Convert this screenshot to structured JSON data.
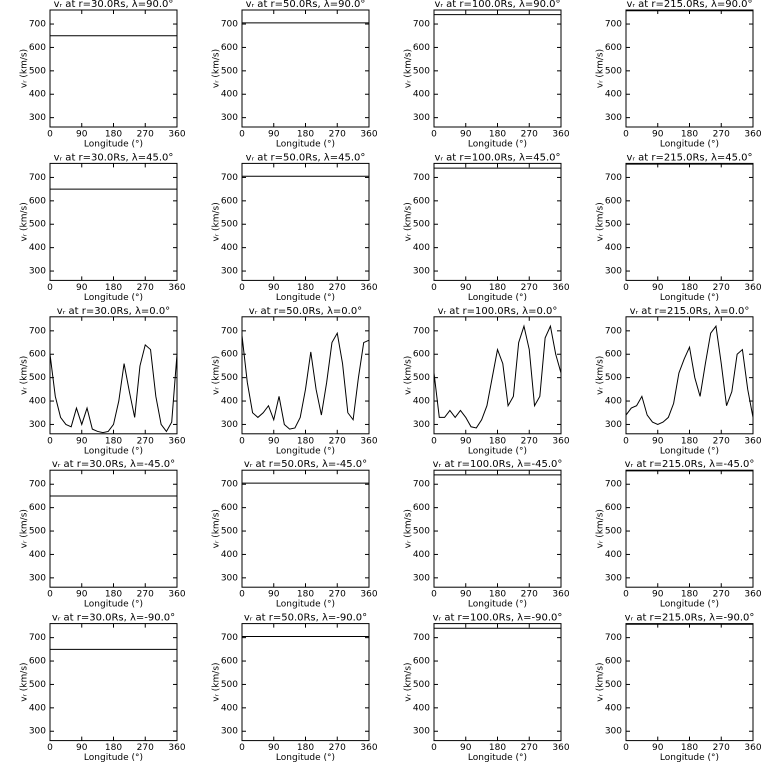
{
  "chart_data": [
    {
      "type": "line",
      "title": "vᵣ at r=30.0Rs, λ=90.0°",
      "x_label": "Longitude (°)",
      "y_label": "vᵣ (km/s)",
      "x": [
        0,
        360
      ],
      "values": [
        650,
        650
      ],
      "color": "#000000",
      "xlim": [
        0,
        360
      ],
      "ylim": [
        260,
        760
      ],
      "xticks": [
        0,
        90,
        180,
        270,
        360
      ],
      "yticks": [
        300,
        400,
        500,
        600,
        700
      ]
    },
    {
      "type": "line",
      "title": "vᵣ at r=50.0Rs, λ=90.0°",
      "x_label": "Longitude (°)",
      "y_label": "vᵣ (km/s)",
      "x": [
        0,
        360
      ],
      "values": [
        705,
        705
      ],
      "color": "#000000",
      "xlim": [
        0,
        360
      ],
      "ylim": [
        260,
        760
      ],
      "xticks": [
        0,
        90,
        180,
        270,
        360
      ],
      "yticks": [
        300,
        400,
        500,
        600,
        700
      ]
    },
    {
      "type": "line",
      "title": "vᵣ at r=100.0Rs, λ=90.0°",
      "x_label": "Longitude (°)",
      "y_label": "vᵣ (km/s)",
      "x": [
        0,
        360
      ],
      "values": [
        740,
        740
      ],
      "color": "#000000",
      "xlim": [
        0,
        360
      ],
      "ylim": [
        260,
        760
      ],
      "xticks": [
        0,
        90,
        180,
        270,
        360
      ],
      "yticks": [
        300,
        400,
        500,
        600,
        700
      ]
    },
    {
      "type": "line",
      "title": "vᵣ at r=215.0Rs, λ=90.0°",
      "x_label": "Longitude (°)",
      "y_label": "vᵣ (km/s)",
      "x": [
        0,
        360
      ],
      "values": [
        757,
        757
      ],
      "color": "#000000",
      "xlim": [
        0,
        360
      ],
      "ylim": [
        260,
        760
      ],
      "xticks": [
        0,
        90,
        180,
        270,
        360
      ],
      "yticks": [
        300,
        400,
        500,
        600,
        700
      ]
    },
    {
      "type": "line",
      "title": "vᵣ at r=30.0Rs, λ=45.0°",
      "x_label": "Longitude (°)",
      "y_label": "vᵣ (km/s)",
      "x": [
        0,
        360
      ],
      "values": [
        650,
        650
      ],
      "color": "#000000",
      "xlim": [
        0,
        360
      ],
      "ylim": [
        260,
        760
      ],
      "xticks": [
        0,
        90,
        180,
        270,
        360
      ],
      "yticks": [
        300,
        400,
        500,
        600,
        700
      ]
    },
    {
      "type": "line",
      "title": "vᵣ at r=50.0Rs, λ=45.0°",
      "x_label": "Longitude (°)",
      "y_label": "vᵣ (km/s)",
      "x": [
        0,
        360
      ],
      "values": [
        705,
        705
      ],
      "color": "#000000",
      "xlim": [
        0,
        360
      ],
      "ylim": [
        260,
        760
      ],
      "xticks": [
        0,
        90,
        180,
        270,
        360
      ],
      "yticks": [
        300,
        400,
        500,
        600,
        700
      ]
    },
    {
      "type": "line",
      "title": "vᵣ at r=100.0Rs, λ=45.0°",
      "x_label": "Longitude (°)",
      "y_label": "vᵣ (km/s)",
      "x": [
        0,
        360
      ],
      "values": [
        740,
        740
      ],
      "color": "#000000",
      "xlim": [
        0,
        360
      ],
      "ylim": [
        260,
        760
      ],
      "xticks": [
        0,
        90,
        180,
        270,
        360
      ],
      "yticks": [
        300,
        400,
        500,
        600,
        700
      ]
    },
    {
      "type": "line",
      "title": "vᵣ at r=215.0Rs, λ=45.0°",
      "x_label": "Longitude (°)",
      "y_label": "vᵣ (km/s)",
      "x": [
        0,
        360
      ],
      "values": [
        757,
        757
      ],
      "color": "#000000",
      "xlim": [
        0,
        360
      ],
      "ylim": [
        260,
        760
      ],
      "xticks": [
        0,
        90,
        180,
        270,
        360
      ],
      "yticks": [
        300,
        400,
        500,
        600,
        700
      ]
    },
    {
      "type": "line",
      "title": "vᵣ at r=30.0Rs, λ=0.0°",
      "x_label": "Longitude (°)",
      "y_label": "vᵣ (km/s)",
      "x": [
        0,
        15,
        30,
        45,
        60,
        75,
        90,
        105,
        120,
        135,
        150,
        165,
        180,
        195,
        210,
        225,
        240,
        255,
        270,
        285,
        300,
        315,
        330,
        345,
        360
      ],
      "values": [
        600,
        420,
        330,
        300,
        290,
        370,
        300,
        370,
        280,
        270,
        265,
        270,
        300,
        400,
        560,
        440,
        330,
        550,
        640,
        620,
        420,
        300,
        270,
        310,
        600
      ],
      "color": "#000000",
      "xlim": [
        0,
        360
      ],
      "ylim": [
        260,
        760
      ],
      "xticks": [
        0,
        90,
        180,
        270,
        360
      ],
      "yticks": [
        300,
        400,
        500,
        600,
        700
      ]
    },
    {
      "type": "line",
      "title": "vᵣ at r=50.0Rs, λ=0.0°",
      "x_label": "Longitude (°)",
      "y_label": "vᵣ (km/s)",
      "x": [
        0,
        15,
        30,
        45,
        60,
        75,
        90,
        105,
        120,
        135,
        150,
        165,
        180,
        195,
        210,
        225,
        240,
        255,
        270,
        285,
        300,
        315,
        330,
        345,
        360
      ],
      "values": [
        680,
        480,
        350,
        330,
        350,
        380,
        320,
        420,
        300,
        280,
        285,
        330,
        450,
        610,
        450,
        340,
        480,
        650,
        690,
        560,
        350,
        320,
        500,
        650,
        660
      ],
      "color": "#000000",
      "xlim": [
        0,
        360
      ],
      "ylim": [
        260,
        760
      ],
      "xticks": [
        0,
        90,
        180,
        270,
        360
      ],
      "yticks": [
        300,
        400,
        500,
        600,
        700
      ]
    },
    {
      "type": "line",
      "title": "vᵣ at r=100.0Rs, λ=0.0°",
      "x_label": "Longitude (°)",
      "y_label": "vᵣ (km/s)",
      "x": [
        0,
        15,
        30,
        45,
        60,
        75,
        90,
        105,
        120,
        135,
        150,
        165,
        180,
        195,
        210,
        225,
        240,
        255,
        270,
        285,
        300,
        315,
        330,
        345,
        360
      ],
      "values": [
        520,
        330,
        330,
        360,
        330,
        360,
        330,
        290,
        285,
        320,
        380,
        500,
        620,
        560,
        380,
        420,
        650,
        720,
        620,
        380,
        420,
        670,
        720,
        600,
        520
      ],
      "color": "#000000",
      "xlim": [
        0,
        360
      ],
      "ylim": [
        260,
        760
      ],
      "xticks": [
        0,
        90,
        180,
        270,
        360
      ],
      "yticks": [
        300,
        400,
        500,
        600,
        700
      ]
    },
    {
      "type": "line",
      "title": "vᵣ at r=215.0Rs, λ=0.0°",
      "x_label": "Longitude (°)",
      "y_label": "vᵣ (km/s)",
      "x": [
        0,
        15,
        30,
        45,
        60,
        75,
        90,
        105,
        120,
        135,
        150,
        165,
        180,
        195,
        210,
        225,
        240,
        255,
        270,
        285,
        300,
        315,
        330,
        345,
        360
      ],
      "values": [
        340,
        370,
        380,
        420,
        340,
        310,
        300,
        310,
        330,
        390,
        520,
        580,
        630,
        500,
        420,
        560,
        690,
        720,
        560,
        380,
        440,
        600,
        620,
        450,
        330
      ],
      "color": "#000000",
      "xlim": [
        0,
        360
      ],
      "ylim": [
        260,
        760
      ],
      "xticks": [
        0,
        90,
        180,
        270,
        360
      ],
      "yticks": [
        300,
        400,
        500,
        600,
        700
      ]
    },
    {
      "type": "line",
      "title": "vᵣ at r=30.0Rs, λ=-45.0°",
      "x_label": "Longitude (°)",
      "y_label": "vᵣ (km/s)",
      "x": [
        0,
        360
      ],
      "values": [
        650,
        650
      ],
      "color": "#000000",
      "xlim": [
        0,
        360
      ],
      "ylim": [
        260,
        760
      ],
      "xticks": [
        0,
        90,
        180,
        270,
        360
      ],
      "yticks": [
        300,
        400,
        500,
        600,
        700
      ]
    },
    {
      "type": "line",
      "title": "vᵣ at r=50.0Rs, λ=-45.0°",
      "x_label": "Longitude (°)",
      "y_label": "vᵣ (km/s)",
      "x": [
        0,
        360
      ],
      "values": [
        705,
        705
      ],
      "color": "#000000",
      "xlim": [
        0,
        360
      ],
      "ylim": [
        260,
        760
      ],
      "xticks": [
        0,
        90,
        180,
        270,
        360
      ],
      "yticks": [
        300,
        400,
        500,
        600,
        700
      ]
    },
    {
      "type": "line",
      "title": "vᵣ at r=100.0Rs, λ=-45.0°",
      "x_label": "Longitude (°)",
      "y_label": "vᵣ (km/s)",
      "x": [
        0,
        360
      ],
      "values": [
        740,
        740
      ],
      "color": "#000000",
      "xlim": [
        0,
        360
      ],
      "ylim": [
        260,
        760
      ],
      "xticks": [
        0,
        90,
        180,
        270,
        360
      ],
      "yticks": [
        300,
        400,
        500,
        600,
        700
      ]
    },
    {
      "type": "line",
      "title": "vᵣ at r=215.0Rs, λ=-45.0°",
      "x_label": "Longitude (°)",
      "y_label": "vᵣ (km/s)",
      "x": [
        0,
        360
      ],
      "values": [
        757,
        757
      ],
      "color": "#000000",
      "xlim": [
        0,
        360
      ],
      "ylim": [
        260,
        760
      ],
      "xticks": [
        0,
        90,
        180,
        270,
        360
      ],
      "yticks": [
        300,
        400,
        500,
        600,
        700
      ]
    },
    {
      "type": "line",
      "title": "vᵣ at r=30.0Rs, λ=-90.0°",
      "x_label": "Longitude (°)",
      "y_label": "vᵣ (km/s)",
      "x": [
        0,
        360
      ],
      "values": [
        650,
        650
      ],
      "color": "#000000",
      "xlim": [
        0,
        360
      ],
      "ylim": [
        260,
        760
      ],
      "xticks": [
        0,
        90,
        180,
        270,
        360
      ],
      "yticks": [
        300,
        400,
        500,
        600,
        700
      ]
    },
    {
      "type": "line",
      "title": "vᵣ at r=50.0Rs, λ=-90.0°",
      "x_label": "Longitude (°)",
      "y_label": "vᵣ (km/s)",
      "x": [
        0,
        360
      ],
      "values": [
        705,
        705
      ],
      "color": "#000000",
      "xlim": [
        0,
        360
      ],
      "ylim": [
        260,
        760
      ],
      "xticks": [
        0,
        90,
        180,
        270,
        360
      ],
      "yticks": [
        300,
        400,
        500,
        600,
        700
      ]
    },
    {
      "type": "line",
      "title": "vᵣ at r=100.0Rs, λ=-90.0°",
      "x_label": "Longitude (°)",
      "y_label": "vᵣ (km/s)",
      "x": [
        0,
        360
      ],
      "values": [
        740,
        740
      ],
      "color": "#000000",
      "xlim": [
        0,
        360
      ],
      "ylim": [
        260,
        760
      ],
      "xticks": [
        0,
        90,
        180,
        270,
        360
      ],
      "yticks": [
        300,
        400,
        500,
        600,
        700
      ]
    },
    {
      "type": "line",
      "title": "vᵣ at r=215.0Rs, λ=-90.0°",
      "x_label": "Longitude (°)",
      "y_label": "vᵣ (km/s)",
      "x": [
        0,
        360
      ],
      "values": [
        757,
        757
      ],
      "color": "#000000",
      "xlim": [
        0,
        360
      ],
      "ylim": [
        260,
        760
      ],
      "xticks": [
        0,
        90,
        180,
        270,
        360
      ],
      "yticks": [
        300,
        400,
        500,
        600,
        700
      ]
    }
  ]
}
